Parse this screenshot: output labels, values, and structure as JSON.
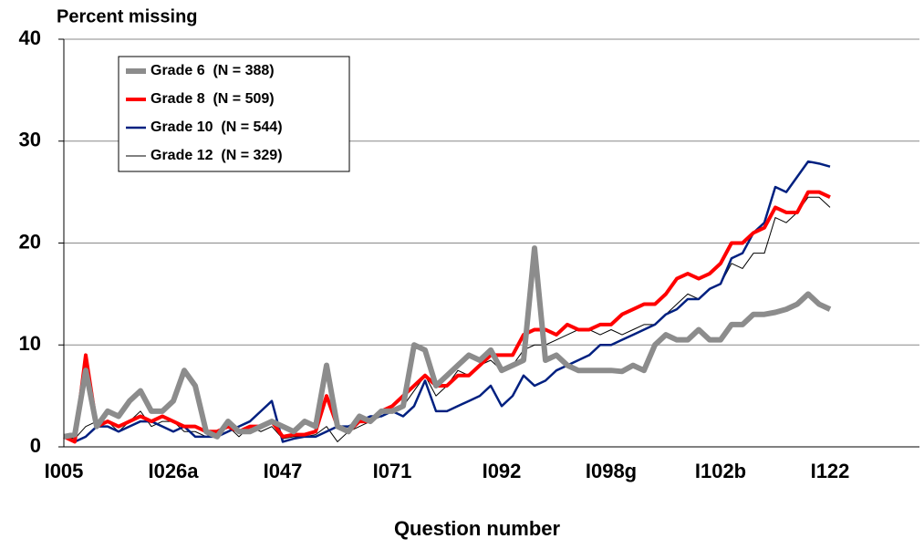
{
  "chart_data": {
    "type": "line",
    "title": "Percent missing",
    "x_label": "Question number",
    "categories": [
      "I005",
      null,
      null,
      null,
      null,
      null,
      null,
      null,
      null,
      null,
      "I026a",
      null,
      null,
      null,
      null,
      null,
      null,
      null,
      null,
      null,
      "I047",
      null,
      null,
      null,
      null,
      null,
      null,
      null,
      null,
      null,
      "I071",
      null,
      null,
      null,
      null,
      null,
      null,
      null,
      null,
      null,
      "I092",
      null,
      null,
      null,
      null,
      null,
      null,
      null,
      null,
      null,
      "I098g",
      null,
      null,
      null,
      null,
      null,
      null,
      null,
      null,
      null,
      "I102b",
      null,
      null,
      null,
      null,
      null,
      null,
      null,
      null,
      null,
      "I122",
      null,
      null,
      null,
      null,
      null,
      null,
      null,
      null
    ],
    "ylim": [
      0,
      40
    ],
    "yticks": [
      0,
      10,
      20,
      30,
      40
    ],
    "grid": true,
    "legend": "upper left",
    "series": [
      {
        "name": "Grade 6  (N = 388)",
        "color": "#8c8c8c",
        "values": [
          1,
          1.2,
          7.5,
          2,
          3.5,
          3,
          4.5,
          5.5,
          3.5,
          3.5,
          4.5,
          7.5,
          6,
          1.5,
          1,
          2.5,
          1.5,
          1.5,
          2,
          2.5,
          2,
          1.5,
          2.5,
          2,
          8,
          2,
          1.5,
          3,
          2.5,
          3.5,
          3.5,
          4,
          10,
          9.5,
          6,
          7,
          8,
          9,
          8.5,
          9.5,
          7.5,
          8,
          8.5,
          19.5,
          8.5,
          9,
          8,
          7.5,
          7.5,
          7.5,
          7.5,
          7.4,
          8,
          7.5,
          10,
          11,
          10.5,
          10.5,
          11.5,
          10.5,
          10.5,
          12,
          12,
          13,
          13,
          13.2,
          13.5,
          14,
          15,
          14,
          13.5,
          null,
          null,
          null,
          null,
          null,
          null,
          null,
          null
        ]
      },
      {
        "name": "Grade 8  (N = 509)",
        "color": "#ff0000",
        "values": [
          1,
          0.5,
          9,
          2,
          2.5,
          2,
          2.5,
          3,
          2.5,
          3,
          2.5,
          2,
          2,
          1.5,
          1.5,
          2,
          1.5,
          2,
          2,
          2.5,
          1,
          1.2,
          1.2,
          1.5,
          5,
          2,
          1.5,
          2.5,
          2.5,
          3.5,
          4,
          5,
          6,
          7,
          6,
          6,
          7,
          7,
          8,
          9,
          9,
          9,
          11,
          11.5,
          11.5,
          11,
          12,
          11.5,
          11.5,
          12,
          12,
          13,
          13.5,
          14,
          14,
          15,
          16.5,
          17,
          16.5,
          17,
          18,
          20,
          20,
          21,
          21.5,
          23.5,
          23,
          23,
          25,
          25,
          24.5,
          null,
          null,
          null,
          null,
          null,
          null,
          null,
          null
        ]
      },
      {
        "name": "Grade 10  (N = 544)",
        "color": "#002080",
        "values": [
          1,
          0.5,
          1,
          2,
          2,
          1.5,
          2,
          2.5,
          2.5,
          2,
          1.5,
          2,
          1,
          1,
          1,
          1.5,
          2,
          2.5,
          3.5,
          4.5,
          0.5,
          0.8,
          1,
          1,
          1.5,
          2,
          2,
          2.5,
          3,
          3,
          3.5,
          3,
          4,
          6.5,
          3.5,
          3.5,
          4,
          4.5,
          5,
          6,
          4,
          5,
          7,
          6,
          6.5,
          7.5,
          8,
          8.5,
          9,
          10,
          10,
          10.5,
          11,
          11.5,
          12,
          13,
          13.5,
          14.5,
          14.5,
          15.5,
          16,
          18.5,
          19,
          21,
          22,
          25.5,
          25,
          26.5,
          28,
          27.8,
          27.5,
          null,
          null,
          null,
          null,
          null,
          null,
          null,
          null
        ]
      },
      {
        "name": "Grade 12  (N = 329)",
        "color": "#000000",
        "values": [
          1,
          0.8,
          2,
          2.5,
          2.5,
          1.5,
          2.5,
          3.5,
          2,
          2.5,
          2.5,
          1.5,
          1.5,
          1,
          1.5,
          2,
          1,
          2,
          1.5,
          2,
          0.8,
          1,
          1,
          1.2,
          2,
          0.5,
          1.5,
          2,
          2.5,
          3,
          3.5,
          4,
          5.5,
          7,
          5,
          6,
          7.5,
          7,
          8,
          8.5,
          7.5,
          8,
          9.5,
          10,
          10,
          10.5,
          11,
          11.5,
          11.5,
          11,
          11.5,
          11,
          11.5,
          12,
          12,
          13,
          14,
          15,
          14.5,
          15.5,
          16,
          18,
          17.5,
          19,
          19,
          22.5,
          22,
          23,
          24.5,
          24.5,
          23.5,
          null,
          null,
          null,
          null,
          null,
          null,
          null,
          null
        ]
      }
    ]
  }
}
